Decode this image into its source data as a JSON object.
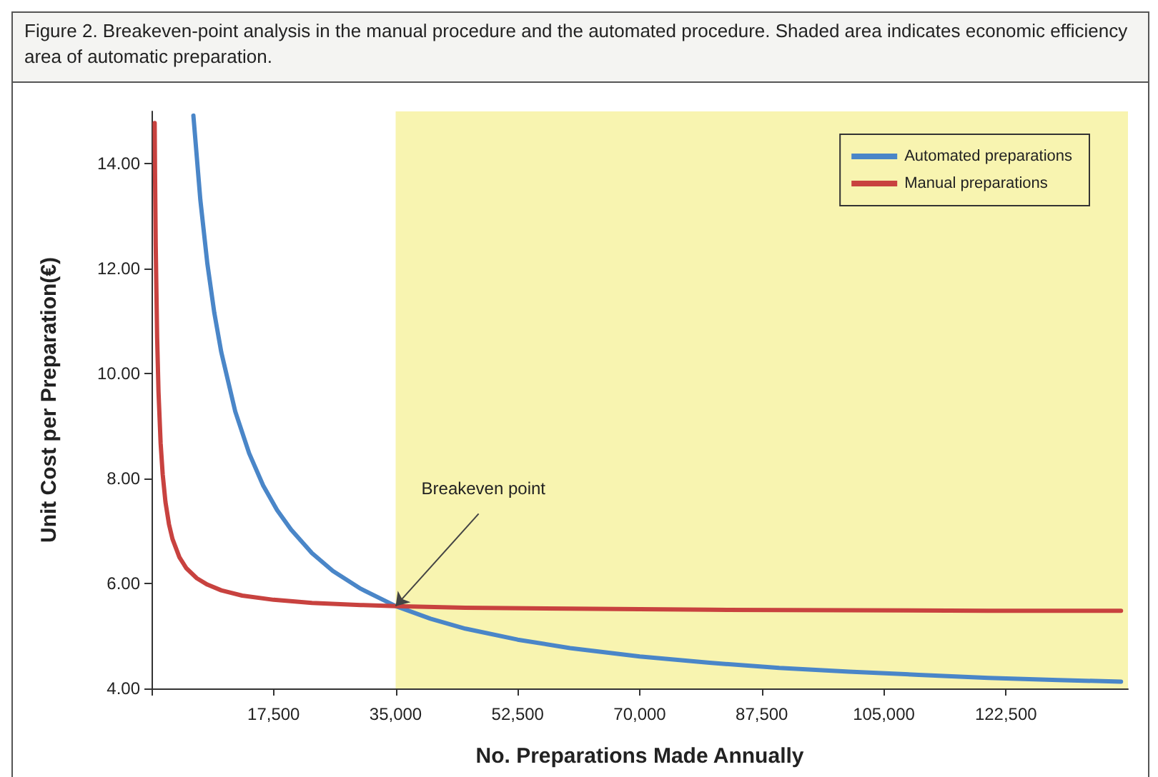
{
  "chart_data": {
    "type": "line",
    "title": "Figure 2. Breakeven-point analysis in the manual procedure and the automated procedure. Shaded area indicates economic efficiency area of automatic preparation.",
    "xlabel": "No. Preparations Made Annually",
    "ylabel": "Unit Cost per Preparation(€)",
    "xlim": [
      0,
      140000
    ],
    "ylim": [
      4,
      15
    ],
    "xticks": [
      {
        "value": 0,
        "label": null
      },
      {
        "value": 17500,
        "label": "17,500"
      },
      {
        "value": 35000,
        "label": "35,000"
      },
      {
        "value": 52500,
        "label": "52,500"
      },
      {
        "value": 70000,
        "label": "70,000"
      },
      {
        "value": 87500,
        "label": "87,500"
      },
      {
        "value": 105000,
        "label": "105,000"
      },
      {
        "value": 122500,
        "label": "122,500"
      }
    ],
    "yticks": [
      {
        "value": 4,
        "label": "4.00"
      },
      {
        "value": 6,
        "label": "6.00"
      },
      {
        "value": 8,
        "label": "8.00"
      },
      {
        "value": 10,
        "label": "10.00"
      },
      {
        "value": 12,
        "label": "12.00"
      },
      {
        "value": 14,
        "label": "14.00"
      }
    ],
    "series": [
      {
        "name": "Automated preparations",
        "color": "#4a86c8",
        "x": [
          6000,
          7000,
          8000,
          9000,
          10000,
          12000,
          14000,
          16000,
          18000,
          20000,
          23000,
          26000,
          30000,
          35000,
          40000,
          45000,
          52500,
          60000,
          70000,
          80000,
          90000,
          100000,
          110000,
          120000,
          130000,
          139000
        ],
        "values": [
          14.92,
          13.31,
          12.1,
          11.16,
          10.41,
          9.28,
          8.48,
          7.87,
          7.4,
          7.03,
          6.58,
          6.24,
          5.9,
          5.57,
          5.33,
          5.14,
          4.93,
          4.77,
          4.61,
          4.49,
          4.39,
          4.32,
          4.26,
          4.2,
          4.16,
          4.13
        ]
      },
      {
        "name": "Manual preparations",
        "color": "#c8423f",
        "x": [
          450,
          500,
          600,
          800,
          1000,
          1300,
          1600,
          2000,
          2500,
          3000,
          4000,
          5000,
          6500,
          8000,
          10000,
          13000,
          17500,
          23000,
          30000,
          35000,
          45000,
          60000,
          80000,
          100000,
          120000,
          139000
        ],
        "values": [
          14.78,
          13.85,
          12.45,
          10.7,
          9.65,
          8.68,
          8.08,
          7.55,
          7.13,
          6.85,
          6.5,
          6.29,
          6.1,
          5.98,
          5.87,
          5.77,
          5.69,
          5.63,
          5.59,
          5.57,
          5.54,
          5.52,
          5.5,
          5.49,
          5.48,
          5.48
        ]
      }
    ],
    "bands": [
      {
        "axis": "x",
        "from": 35000,
        "to": 140000,
        "color": "#f8f4b0"
      }
    ],
    "annotations": [
      {
        "text": "Breakeven point",
        "x": 35000,
        "y": 5.57
      }
    ],
    "legend": "top right",
    "grid": false,
    "marker": "none",
    "line_style": "solid"
  }
}
